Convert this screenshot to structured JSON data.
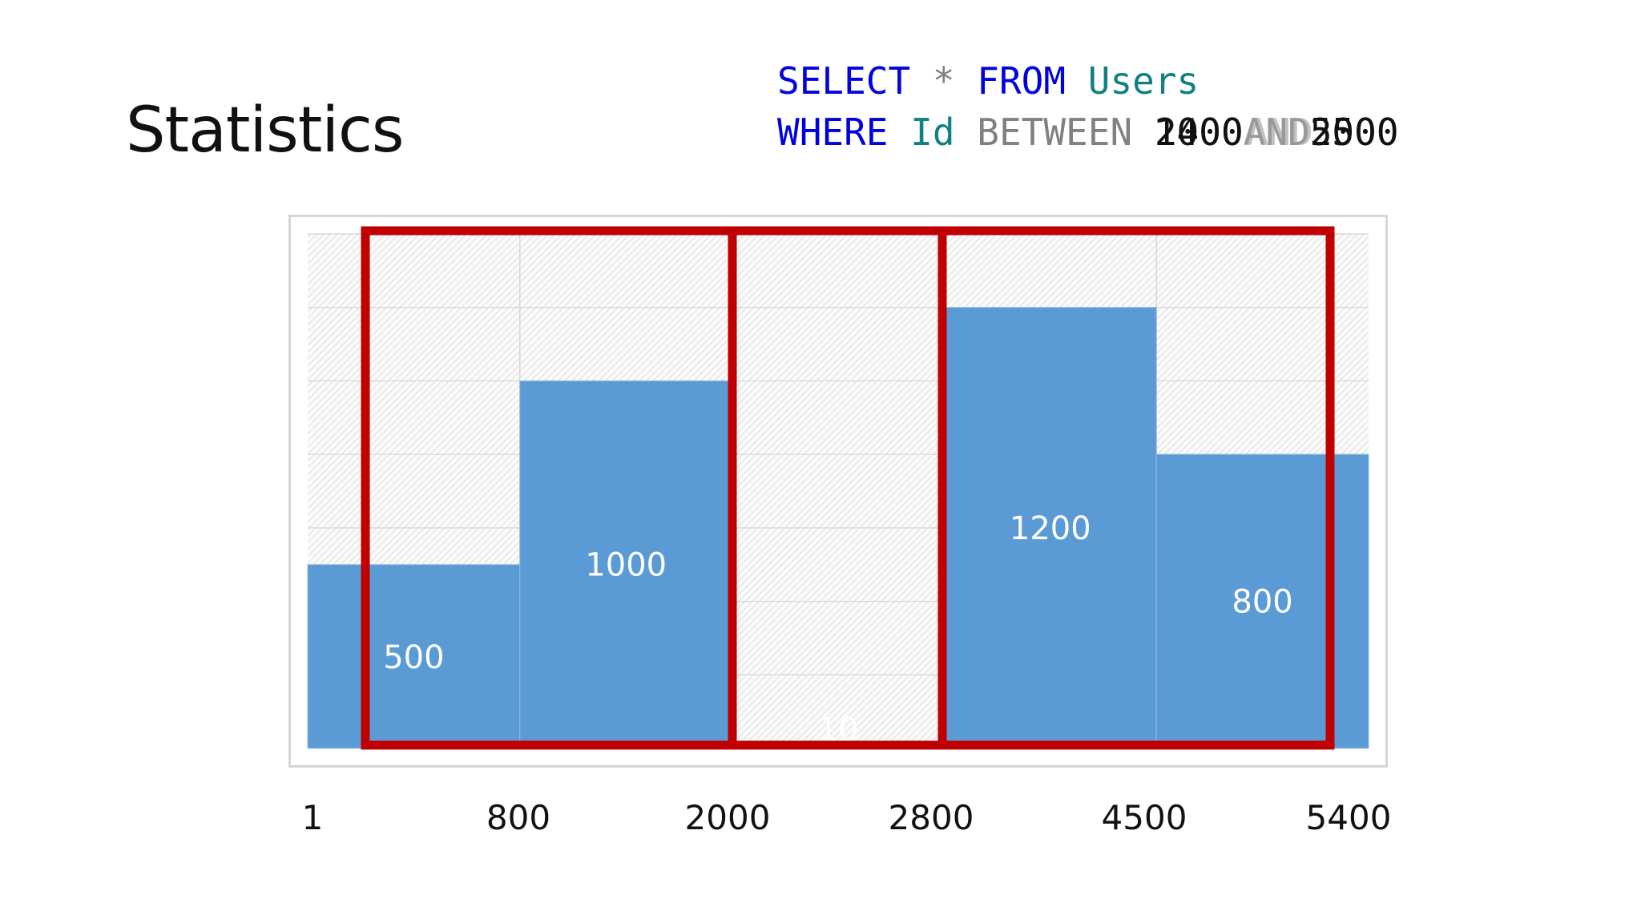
{
  "slide": {
    "title": "Statistics"
  },
  "query": {
    "line1": {
      "select": "SELECT",
      "star": "*",
      "from": "FROM",
      "table": "Users"
    },
    "line2": {
      "where": "WHERE",
      "column": "Id",
      "between": "BETWEEN",
      "low": "2000",
      "low_overlap": "1400",
      "and": "AND",
      "and_overlap": "AND",
      "high": "5000",
      "high_overlap": "2500"
    }
  },
  "colors": {
    "bar": "#5b9bd5",
    "highlight_box": "#c00000",
    "sql_keyword": "#0000e0",
    "sql_identifier": "#108080",
    "sql_operator": "#808080"
  },
  "chart_data": {
    "type": "bar",
    "title": "",
    "xlabel": "",
    "ylabel": "",
    "categories": [
      "1-800",
      "800-2000",
      "2000-2800",
      "2800-4500",
      "4500-5400"
    ],
    "bin_edges": [
      1,
      800,
      2000,
      2800,
      4500,
      5400
    ],
    "values": [
      500,
      1000,
      10,
      1200,
      800
    ],
    "value_labels": [
      "500",
      "1000",
      "10",
      "1200",
      "800"
    ],
    "edge_labels": [
      "1",
      "800",
      "2000",
      "2800",
      "4500",
      "5400"
    ],
    "ylim": [
      0,
      1400
    ],
    "grid": true,
    "highlight_ranges": [
      [
        "1",
        "2000"
      ],
      [
        "2000",
        "2800"
      ],
      [
        "2800",
        "5400"
      ]
    ]
  }
}
